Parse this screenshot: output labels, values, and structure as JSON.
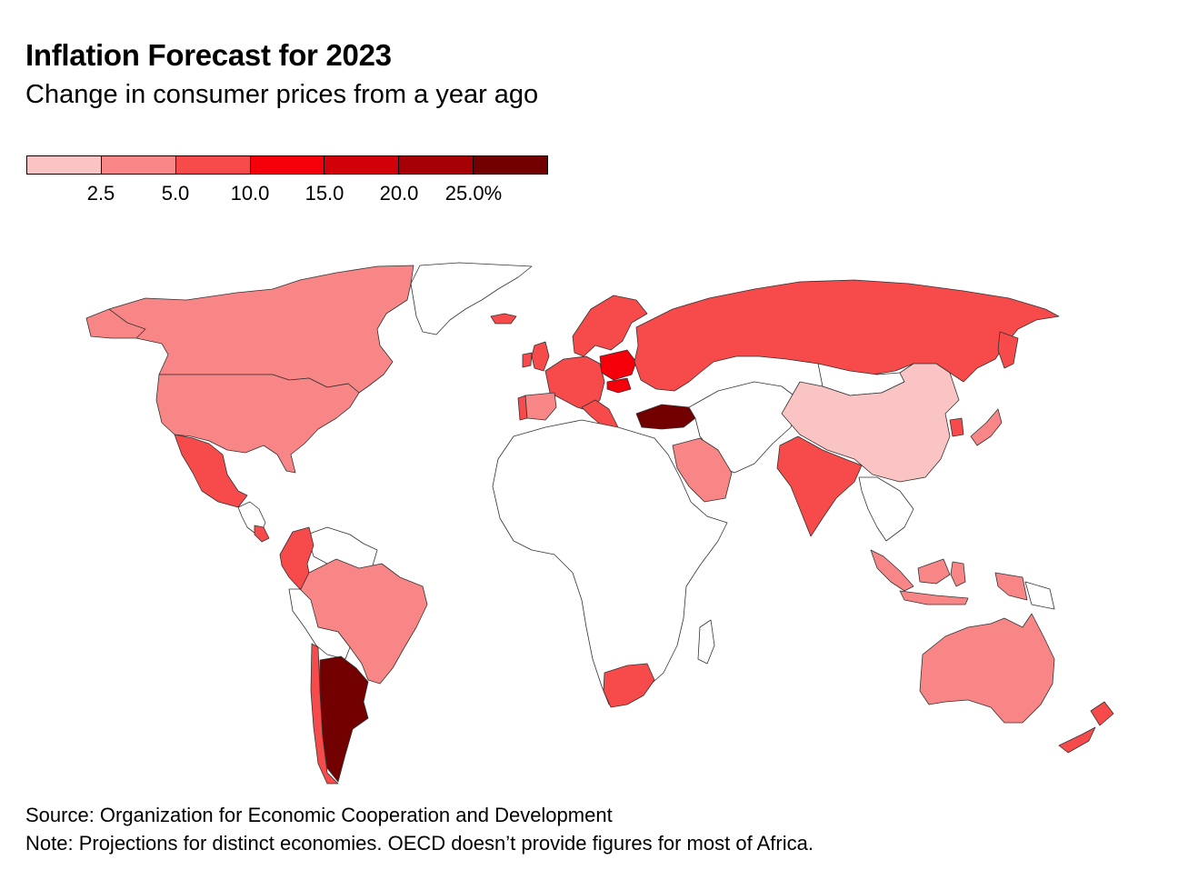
{
  "title": "Inflation Forecast for 2023",
  "subtitle": "Change in consumer prices from a year ago",
  "legend": {
    "bins": [
      {
        "color": "#fbc4c4"
      },
      {
        "color": "#f98686"
      },
      {
        "color": "#f74a4a"
      },
      {
        "color": "#f5000a"
      },
      {
        "color": "#d20008"
      },
      {
        "color": "#a60006"
      },
      {
        "color": "#730000"
      }
    ],
    "labels": [
      "2.5",
      "5.0",
      "10.0",
      "15.0",
      "20.0",
      "25.0%"
    ]
  },
  "regions": [
    {
      "name": "Canada",
      "bin": 1
    },
    {
      "name": "United States",
      "bin": 1
    },
    {
      "name": "Greenland",
      "bin": null
    },
    {
      "name": "Mexico",
      "bin": 2
    },
    {
      "name": "Costa Rica",
      "bin": 2
    },
    {
      "name": "Colombia",
      "bin": 2
    },
    {
      "name": "Brazil",
      "bin": 1
    },
    {
      "name": "Chile",
      "bin": 2
    },
    {
      "name": "Argentina",
      "bin": 6
    },
    {
      "name": "Iceland",
      "bin": 2
    },
    {
      "name": "United Kingdom",
      "bin": 2
    },
    {
      "name": "Spain",
      "bin": 1
    },
    {
      "name": "Portugal",
      "bin": 2
    },
    {
      "name": "Western Europe",
      "bin": 2
    },
    {
      "name": "Scandinavia",
      "bin": 2
    },
    {
      "name": "Poland",
      "bin": 3
    },
    {
      "name": "Hungary",
      "bin": 3
    },
    {
      "name": "Turkey",
      "bin": 6
    },
    {
      "name": "Russia",
      "bin": 2
    },
    {
      "name": "China",
      "bin": 0
    },
    {
      "name": "Japan",
      "bin": 1
    },
    {
      "name": "South Korea",
      "bin": 2
    },
    {
      "name": "India",
      "bin": 2
    },
    {
      "name": "Saudi Arabia",
      "bin": 1
    },
    {
      "name": "Indonesia",
      "bin": 1
    },
    {
      "name": "Australia",
      "bin": 1
    },
    {
      "name": "New Zealand",
      "bin": 2
    },
    {
      "name": "South Africa",
      "bin": 2
    },
    {
      "name": "Africa",
      "bin": null
    },
    {
      "name": "Middle East and Central Asia",
      "bin": null
    },
    {
      "name": "Mongolia",
      "bin": null
    },
    {
      "name": "Southeast Asia",
      "bin": null
    },
    {
      "name": "Northern South America",
      "bin": null
    },
    {
      "name": "Bolivia and Peru",
      "bin": null
    }
  ],
  "source": "Source: Organization for Economic Cooperation and Development",
  "note": "Note: Projections for distinct economies. OECD doesn’t provide figures for most of Africa."
}
